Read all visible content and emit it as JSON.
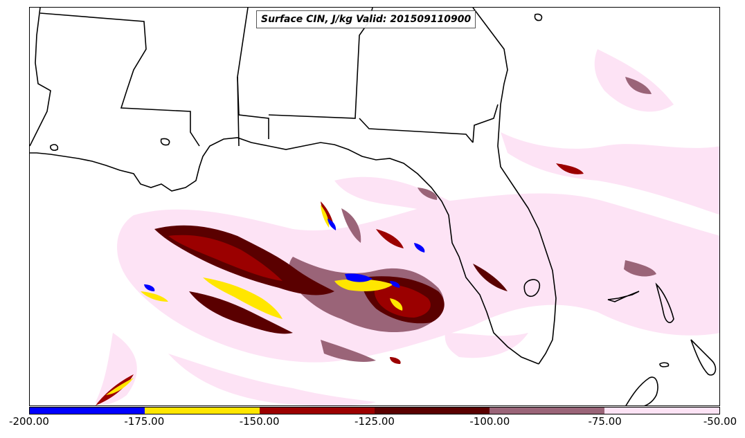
{
  "title": "Surface CIN, J/kg Valid: 201509110900",
  "colorbar": {
    "ticks": [
      "-200.00",
      "-175.00",
      "-150.00",
      "-125.00",
      "-100.00",
      "-75.00",
      "-50.00"
    ],
    "colors": [
      "#0000ff",
      "#ffe600",
      "#9b0000",
      "#5a0000",
      "#9a6478",
      "#fde3f5"
    ]
  },
  "field_colors": {
    "blue": "#0000ff",
    "yellow": "#ffe600",
    "red": "#9b0000",
    "darkred": "#5a0000",
    "mauve": "#9a6478",
    "pink": "#fde3f5"
  }
}
